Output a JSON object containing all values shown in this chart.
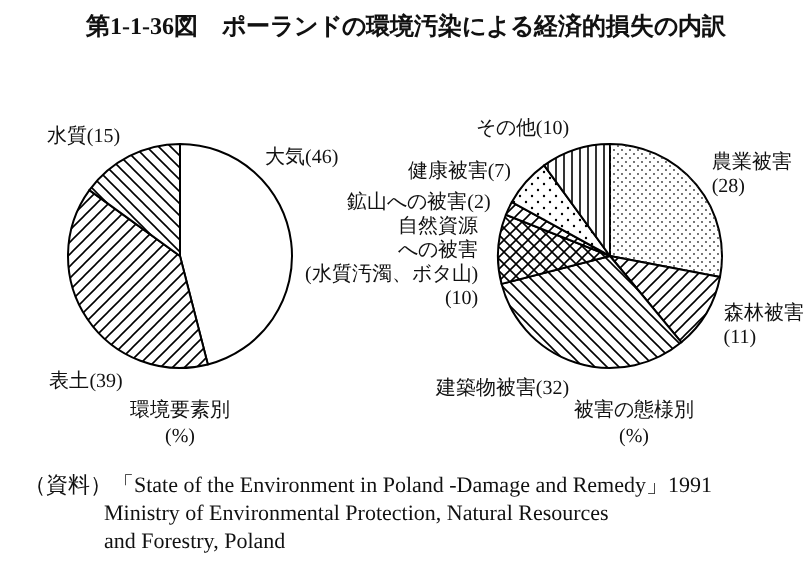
{
  "chart_data": [
    {
      "type": "pie",
      "title": "第1-1-36図　ポーランドの環境汚染による経済的損失の内訳",
      "xlabel": "環境要素別\n(%)",
      "categories": [
        "大気",
        "表土",
        "水質"
      ],
      "values": [
        46,
        39,
        15
      ],
      "colors": [
        "#ffffff",
        "#ffffff",
        "#ffffff"
      ],
      "value_labels": [
        "(46)",
        "(39)",
        "(15)"
      ],
      "annotations": [
        "（資料）「State of the Environment in Poland -Damage and Remedy」1991\nMinistry of Environmental Protection, Natural Resources\nand Forestry, Poland"
      ]
    },
    {
      "type": "pie",
      "xlabel": "被害の態様別\n(%)",
      "categories": [
        "農業被害",
        "森林被害",
        "建築物被害",
        "自然資源への被害(水質汚濁、ボタ山)",
        "鉱山への被害",
        "健康被害",
        "その他"
      ],
      "values": [
        28,
        11,
        32,
        10,
        2,
        7,
        10
      ],
      "colors": [
        "#ffffff",
        "#ffffff",
        "#ffffff",
        "#ffffff",
        "#ffffff",
        "#ffffff",
        "#ffffff"
      ],
      "value_labels": [
        "(28)",
        "(11)",
        "(32)",
        "(10)",
        "(2)",
        "(7)",
        "(10)"
      ]
    }
  ]
}
